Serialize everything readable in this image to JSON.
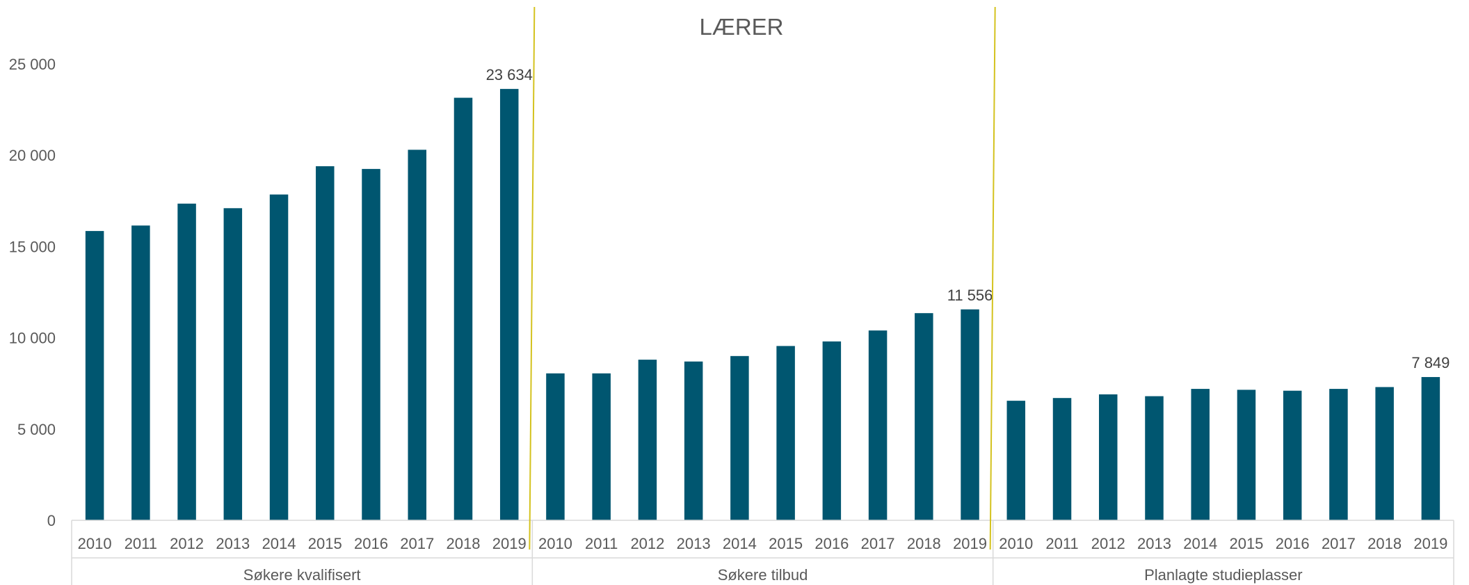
{
  "chart_data": {
    "type": "bar",
    "title": "LÆRER",
    "ylim": [
      0,
      25000
    ],
    "yticks": [
      0,
      5000,
      10000,
      15000,
      20000,
      25000
    ],
    "ytick_labels": [
      "0",
      "5 000",
      "10 000",
      "15 000",
      "20 000",
      "25 000"
    ],
    "grid": false,
    "legend": "none",
    "bar_color": "#005670",
    "divider_color": "#d4c21e",
    "groups": [
      {
        "label": "Søkere kvalifisert",
        "categories": [
          "2010",
          "2011",
          "2012",
          "2013",
          "2014",
          "2015",
          "2016",
          "2017",
          "2018",
          "2019"
        ],
        "values": [
          15850,
          16150,
          17350,
          17100,
          17850,
          19400,
          19250,
          20300,
          23150,
          23634
        ],
        "last_value_label": "23 634"
      },
      {
        "label": "Søkere tilbud",
        "categories": [
          "2010",
          "2011",
          "2012",
          "2013",
          "2014",
          "2015",
          "2016",
          "2017",
          "2018",
          "2019"
        ],
        "values": [
          8050,
          8050,
          8800,
          8700,
          9000,
          9550,
          9800,
          10400,
          11350,
          11556
        ],
        "last_value_label": "11 556"
      },
      {
        "label": "Planlagte studieplasser",
        "categories": [
          "2010",
          "2011",
          "2012",
          "2013",
          "2014",
          "2015",
          "2016",
          "2017",
          "2018",
          "2019"
        ],
        "values": [
          6550,
          6700,
          6900,
          6800,
          7200,
          7150,
          7100,
          7200,
          7300,
          7849
        ],
        "last_value_label": "7 849"
      }
    ]
  }
}
